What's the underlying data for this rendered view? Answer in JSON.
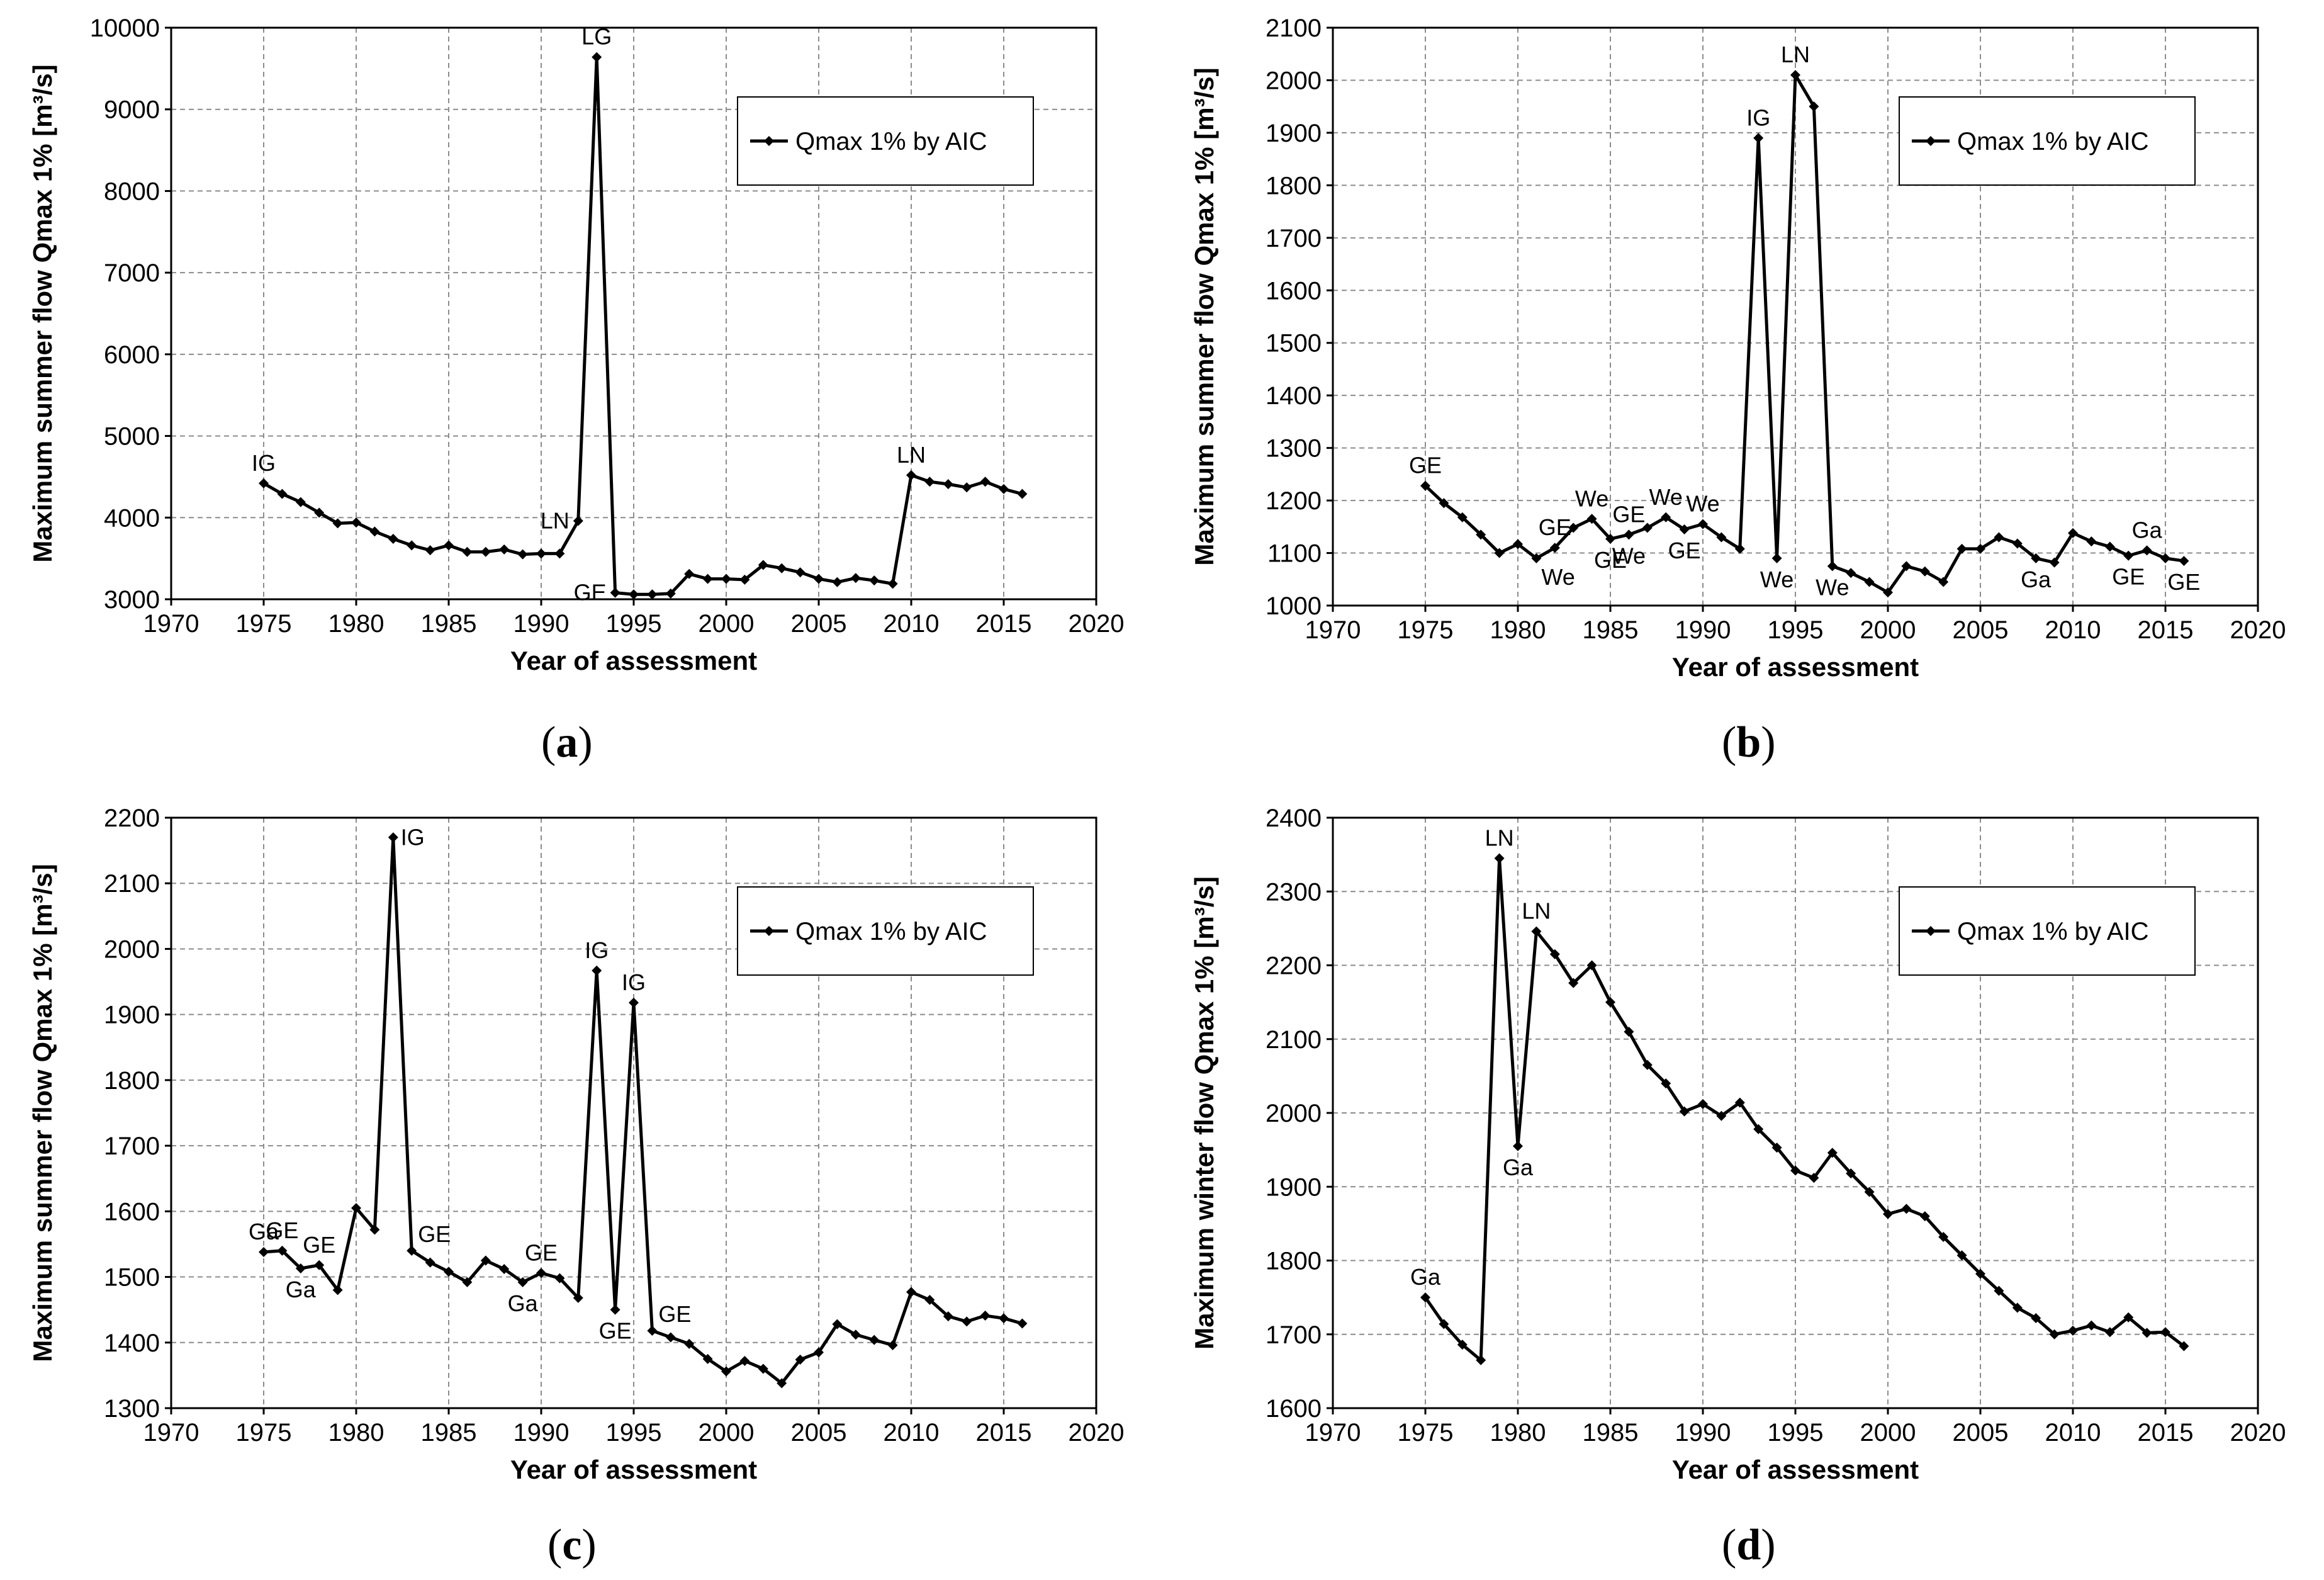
{
  "colors": {
    "line": "#000000",
    "grid": "#8c8c8c",
    "background": "#ffffff"
  },
  "chart_data": [
    {
      "id": "a",
      "panel_label_open": "(",
      "panel_label_letter": "a",
      "panel_label_close": ")",
      "type": "line",
      "xlabel": "Year of assessment",
      "ylabel": "Maximum summer flow Qmax 1% [m³/s]",
      "xlim": [
        1970,
        2020
      ],
      "xticks": [
        1970,
        1975,
        1980,
        1985,
        1990,
        1995,
        2000,
        2005,
        2010,
        2015,
        2020
      ],
      "ylim": [
        3000,
        10000
      ],
      "yticks": [
        3000,
        4000,
        5000,
        6000,
        7000,
        8000,
        9000,
        10000
      ],
      "legend": "Qmax 1% by AIC",
      "legend_position": "top-right",
      "x": [
        1975,
        1976,
        1977,
        1978,
        1979,
        1980,
        1981,
        1982,
        1983,
        1984,
        1985,
        1986,
        1987,
        1988,
        1989,
        1990,
        1991,
        1992,
        1993,
        1994,
        1995,
        1996,
        1997,
        1998,
        1999,
        2000,
        2001,
        2002,
        2003,
        2004,
        2005,
        2006,
        2007,
        2008,
        2009,
        2010,
        2011,
        2012,
        2013,
        2014,
        2015,
        2016
      ],
      "values": [
        4420,
        4290,
        4190,
        4060,
        3930,
        3940,
        3830,
        3740,
        3660,
        3600,
        3660,
        3580,
        3580,
        3610,
        3550,
        3560,
        3560,
        3960,
        9640,
        3080,
        3060,
        3060,
        3070,
        3310,
        3250,
        3250,
        3240,
        3420,
        3380,
        3330,
        3250,
        3210,
        3260,
        3230,
        3190,
        4520,
        4440,
        4410,
        4370,
        4440,
        4350,
        4290
      ],
      "annotations": [
        {
          "x": 1975,
          "y": 4420,
          "text": "IG",
          "pos": "above"
        },
        {
          "x": 1992,
          "y": 3960,
          "text": "LN",
          "pos": "left"
        },
        {
          "x": 1993,
          "y": 9640,
          "text": "LG",
          "pos": "above"
        },
        {
          "x": 1994,
          "y": 3080,
          "text": "GE",
          "pos": "left"
        },
        {
          "x": 2010,
          "y": 4520,
          "text": "LN",
          "pos": "above"
        }
      ]
    },
    {
      "id": "b",
      "panel_label_open": "(",
      "panel_label_letter": "b",
      "panel_label_close": ")",
      "type": "line",
      "xlabel": "Year of assessment",
      "ylabel": "Maximum summer flow Qmax 1% [m³/s]",
      "xlim": [
        1970,
        2020
      ],
      "xticks": [
        1970,
        1975,
        1980,
        1985,
        1990,
        1995,
        2000,
        2005,
        2010,
        2015,
        2020
      ],
      "ylim": [
        1000,
        2100
      ],
      "yticks": [
        1000,
        1100,
        1200,
        1300,
        1400,
        1500,
        1600,
        1700,
        1800,
        1900,
        2000,
        2100
      ],
      "legend": "Qmax 1% by AIC",
      "legend_position": "top-right",
      "x": [
        1975,
        1976,
        1977,
        1978,
        1979,
        1980,
        1981,
        1982,
        1983,
        1984,
        1985,
        1986,
        1987,
        1988,
        1989,
        1990,
        1991,
        1992,
        1993,
        1994,
        1995,
        1996,
        1997,
        1998,
        1999,
        2000,
        2001,
        2002,
        2003,
        2004,
        2005,
        2006,
        2007,
        2008,
        2009,
        2010,
        2011,
        2012,
        2013,
        2014,
        2015,
        2016
      ],
      "values": [
        1228,
        1195,
        1168,
        1135,
        1100,
        1117,
        1090,
        1110,
        1148,
        1165,
        1127,
        1135,
        1148,
        1168,
        1145,
        1155,
        1130,
        1108,
        1890,
        1090,
        2010,
        1950,
        1075,
        1062,
        1045,
        1025,
        1075,
        1065,
        1045,
        1108,
        1108,
        1130,
        1118,
        1090,
        1082,
        1138,
        1122,
        1112,
        1095,
        1105,
        1090,
        1085
      ],
      "annotations": [
        {
          "x": 1975,
          "y": 1228,
          "text": "GE",
          "pos": "above"
        },
        {
          "x": 1981,
          "y": 1090,
          "text": "We",
          "pos": "below-right"
        },
        {
          "x": 1982,
          "y": 1110,
          "text": "GE",
          "pos": "above"
        },
        {
          "x": 1984,
          "y": 1165,
          "text": "We",
          "pos": "above"
        },
        {
          "x": 1985,
          "y": 1127,
          "text": "GE",
          "pos": "below"
        },
        {
          "x": 1986,
          "y": 1135,
          "text": "GE",
          "pos": "above"
        },
        {
          "x": 1986,
          "y": 1135,
          "text": "We",
          "pos": "below"
        },
        {
          "x": 1988,
          "y": 1168,
          "text": "We",
          "pos": "above"
        },
        {
          "x": 1989,
          "y": 1145,
          "text": "GE",
          "pos": "below"
        },
        {
          "x": 1990,
          "y": 1155,
          "text": "We",
          "pos": "above"
        },
        {
          "x": 1993,
          "y": 1890,
          "text": "IG",
          "pos": "above"
        },
        {
          "x": 1994,
          "y": 1090,
          "text": "We",
          "pos": "below"
        },
        {
          "x": 1995,
          "y": 2010,
          "text": "LN",
          "pos": "above"
        },
        {
          "x": 1997,
          "y": 1075,
          "text": "We",
          "pos": "below"
        },
        {
          "x": 2008,
          "y": 1090,
          "text": "Ga",
          "pos": "below"
        },
        {
          "x": 2013,
          "y": 1095,
          "text": "GE",
          "pos": "below"
        },
        {
          "x": 2014,
          "y": 1105,
          "text": "Ga",
          "pos": "above"
        },
        {
          "x": 2016,
          "y": 1085,
          "text": "GE",
          "pos": "below"
        }
      ]
    },
    {
      "id": "c",
      "panel_label_open": "(",
      "panel_label_letter": "c",
      "panel_label_close": ")",
      "type": "line",
      "xlabel": "Year of assessment",
      "ylabel": "Maximum summer flow Qmax 1% [m³/s]",
      "xlim": [
        1970,
        2020
      ],
      "xticks": [
        1970,
        1975,
        1980,
        1985,
        1990,
        1995,
        2000,
        2005,
        2010,
        2015,
        2020
      ],
      "ylim": [
        1300,
        2200
      ],
      "yticks": [
        1300,
        1400,
        1500,
        1600,
        1700,
        1800,
        1900,
        2000,
        2100,
        2200
      ],
      "legend": "Qmax 1% by AIC",
      "legend_position": "top-right",
      "x": [
        1975,
        1976,
        1977,
        1978,
        1979,
        1980,
        1981,
        1982,
        1983,
        1984,
        1985,
        1986,
        1987,
        1988,
        1989,
        1990,
        1991,
        1992,
        1993,
        1994,
        1995,
        1996,
        1997,
        1998,
        1999,
        2000,
        2001,
        2002,
        2003,
        2004,
        2005,
        2006,
        2007,
        2008,
        2009,
        2010,
        2011,
        2012,
        2013,
        2014,
        2015,
        2016
      ],
      "values": [
        1538,
        1540,
        1513,
        1518,
        1480,
        1605,
        1572,
        2170,
        1540,
        1522,
        1508,
        1492,
        1525,
        1512,
        1492,
        1506,
        1498,
        1468,
        1967,
        1450,
        1918,
        1418,
        1408,
        1398,
        1375,
        1356,
        1372,
        1360,
        1338,
        1374,
        1385,
        1428,
        1412,
        1404,
        1396,
        1477,
        1465,
        1440,
        1432,
        1441,
        1437,
        1429
      ],
      "annotations": [
        {
          "x": 1975,
          "y": 1538,
          "text": "Ga",
          "pos": "above"
        },
        {
          "x": 1976,
          "y": 1540,
          "text": "GE",
          "pos": "above"
        },
        {
          "x": 1977,
          "y": 1513,
          "text": "Ga",
          "pos": "below"
        },
        {
          "x": 1978,
          "y": 1518,
          "text": "GE",
          "pos": "above"
        },
        {
          "x": 1982,
          "y": 2170,
          "text": "IG",
          "pos": "right"
        },
        {
          "x": 1983,
          "y": 1540,
          "text": "GE",
          "pos": "above-right"
        },
        {
          "x": 1989,
          "y": 1492,
          "text": "Ga",
          "pos": "below"
        },
        {
          "x": 1990,
          "y": 1506,
          "text": "GE",
          "pos": "above"
        },
        {
          "x": 1993,
          "y": 1967,
          "text": "IG",
          "pos": "above"
        },
        {
          "x": 1994,
          "y": 1450,
          "text": "GE",
          "pos": "below"
        },
        {
          "x": 1995,
          "y": 1918,
          "text": "IG",
          "pos": "above"
        },
        {
          "x": 1996,
          "y": 1418,
          "text": "GE",
          "pos": "above-right"
        }
      ]
    },
    {
      "id": "d",
      "panel_label_open": "(",
      "panel_label_letter": "d",
      "panel_label_close": ")",
      "type": "line",
      "xlabel": "Year of assessment",
      "ylabel": "Maximum winter flow Qmax 1% [m³/s]",
      "xlim": [
        1970,
        2020
      ],
      "xticks": [
        1970,
        1975,
        1980,
        1985,
        1990,
        1995,
        2000,
        2005,
        2010,
        2015,
        2020
      ],
      "ylim": [
        1600,
        2400
      ],
      "yticks": [
        1600,
        1700,
        1800,
        1900,
        2000,
        2100,
        2200,
        2300,
        2400
      ],
      "legend": "Qmax 1% by AIC",
      "legend_position": "top-right",
      "x": [
        1975,
        1976,
        1977,
        1978,
        1979,
        1980,
        1981,
        1982,
        1983,
        1984,
        1985,
        1986,
        1987,
        1988,
        1989,
        1990,
        1991,
        1992,
        1993,
        1994,
        1995,
        1996,
        1997,
        1998,
        1999,
        2000,
        2001,
        2002,
        2003,
        2004,
        2005,
        2006,
        2007,
        2008,
        2009,
        2010,
        2011,
        2012,
        2013,
        2014,
        2015,
        2016
      ],
      "values": [
        1750,
        1714,
        1686,
        1665,
        2345,
        1955,
        2246,
        2215,
        2176,
        2200,
        2150,
        2110,
        2065,
        2040,
        2002,
        2012,
        1996,
        2014,
        1978,
        1953,
        1922,
        1912,
        1946,
        1918,
        1893,
        1863,
        1870,
        1860,
        1832,
        1807,
        1782,
        1759,
        1736,
        1722,
        1700,
        1705,
        1712,
        1703,
        1723,
        1702,
        1703,
        1684
      ],
      "annotations": [
        {
          "x": 1975,
          "y": 1750,
          "text": "Ga",
          "pos": "above"
        },
        {
          "x": 1979,
          "y": 2345,
          "text": "LN",
          "pos": "above"
        },
        {
          "x": 1980,
          "y": 1955,
          "text": "Ga",
          "pos": "below"
        },
        {
          "x": 1981,
          "y": 2246,
          "text": "LN",
          "pos": "above"
        }
      ]
    }
  ]
}
